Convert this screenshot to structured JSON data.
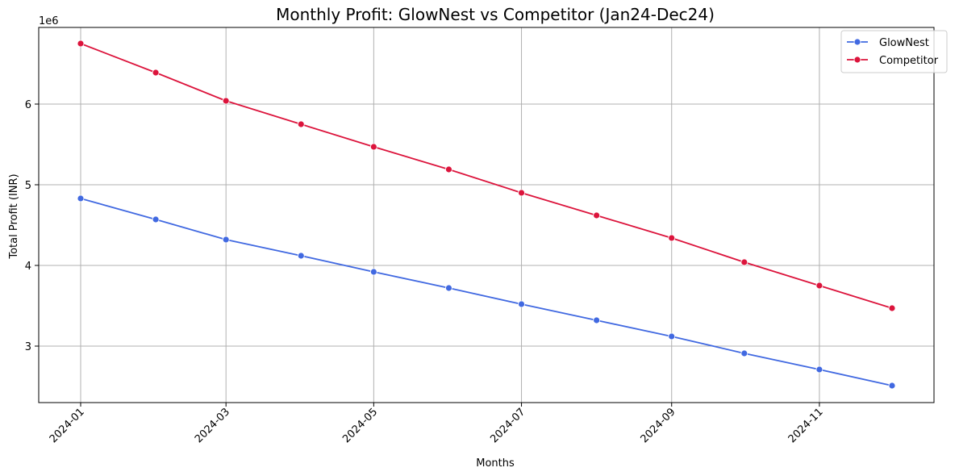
{
  "chart_data": {
    "type": "line",
    "title": "Monthly Profit: GlowNest vs Competitor (Jan24-Dec24)",
    "xlabel": "Months",
    "ylabel": "Total Profit (INR)",
    "y_scale_label": "1e6",
    "x": [
      "2024-01-01",
      "2024-02-01",
      "2024-03-01",
      "2024-04-01",
      "2024-05-01",
      "2024-06-01",
      "2024-07-01",
      "2024-08-01",
      "2024-09-01",
      "2024-10-01",
      "2024-11-01",
      "2024-12-01"
    ],
    "x_ticks": [
      "2024-01",
      "2024-03",
      "2024-05",
      "2024-07",
      "2024-09",
      "2024-11"
    ],
    "y_ticks": [
      "3",
      "4",
      "5",
      "6"
    ],
    "ylim": [
      2300000,
      6950000
    ],
    "grid": true,
    "legend_position": "top-right",
    "series": [
      {
        "name": "GlowNest",
        "color": "#4169e1",
        "values": [
          4830000,
          4570000,
          4320000,
          4120000,
          3920000,
          3720000,
          3520000,
          3320000,
          3120000,
          2910000,
          2710000,
          2510000
        ]
      },
      {
        "name": "Competitor",
        "color": "#dc143c",
        "values": [
          6750000,
          6390000,
          6040000,
          5750000,
          5470000,
          5190000,
          4900000,
          4620000,
          4340000,
          4040000,
          3750000,
          3470000
        ]
      }
    ]
  }
}
